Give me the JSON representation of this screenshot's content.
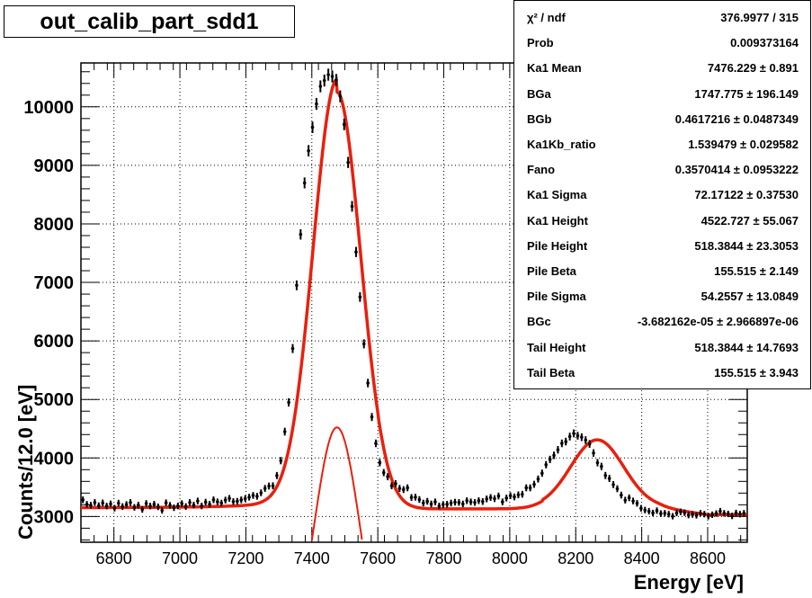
{
  "chart_data": {
    "type": "line",
    "title": "out_calib_part_sdd1",
    "xlabel": "Energy [eV]",
    "ylabel": "Counts/12.0 [eV]",
    "xlim": [
      6700,
      8720
    ],
    "ylim": [
      2560,
      10750
    ],
    "x_ticks": [
      6800,
      7000,
      7200,
      7400,
      7600,
      7800,
      8000,
      8200,
      8400,
      8600
    ],
    "y_ticks": [
      3000,
      4000,
      5000,
      6000,
      7000,
      8000,
      9000,
      10000
    ],
    "grid": true,
    "series": [
      {
        "type": "scatter_errorbars",
        "color": "#000000",
        "x": [
          6706,
          6718,
          6730,
          6742,
          6754,
          6766,
          6778,
          6790,
          6802,
          6814,
          6826,
          6838,
          6850,
          6862,
          6874,
          6886,
          6898,
          6910,
          6922,
          6934,
          6946,
          6958,
          6970,
          6982,
          6994,
          7006,
          7018,
          7030,
          7042,
          7054,
          7066,
          7078,
          7090,
          7102,
          7114,
          7126,
          7138,
          7150,
          7162,
          7174,
          7186,
          7198,
          7210,
          7222,
          7234,
          7246,
          7258,
          7270,
          7282,
          7294,
          7306,
          7318,
          7330,
          7342,
          7354,
          7366,
          7378,
          7390,
          7402,
          7414,
          7426,
          7438,
          7450,
          7462,
          7474,
          7486,
          7498,
          7510,
          7522,
          7534,
          7546,
          7558,
          7570,
          7582,
          7594,
          7606,
          7618,
          7630,
          7642,
          7654,
          7666,
          7678,
          7690,
          7702,
          7714,
          7726,
          7738,
          7750,
          7762,
          7774,
          7786,
          7798,
          7810,
          7822,
          7834,
          7846,
          7858,
          7870,
          7882,
          7894,
          7906,
          7918,
          7930,
          7942,
          7954,
          7966,
          7978,
          7990,
          8002,
          8014,
          8026,
          8038,
          8050,
          8062,
          8074,
          8086,
          8098,
          8110,
          8122,
          8134,
          8146,
          8158,
          8170,
          8182,
          8194,
          8206,
          8218,
          8230,
          8242,
          8254,
          8266,
          8278,
          8290,
          8302,
          8314,
          8326,
          8338,
          8350,
          8362,
          8374,
          8386,
          8398,
          8410,
          8422,
          8434,
          8446,
          8458,
          8470,
          8482,
          8494,
          8506,
          8518,
          8530,
          8542,
          8554,
          8566,
          8578,
          8590,
          8602,
          8614,
          8626,
          8638,
          8650,
          8662,
          8674,
          8686,
          8698,
          8710
        ],
        "y": [
          3285,
          3208,
          3192,
          3240,
          3185,
          3232,
          3178,
          3215,
          3142,
          3228,
          3170,
          3205,
          3240,
          3156,
          3195,
          3120,
          3222,
          3178,
          3210,
          3165,
          3105,
          3235,
          3190,
          3150,
          3180,
          3220,
          3170,
          3240,
          3195,
          3265,
          3180,
          3245,
          3210,
          3285,
          3250,
          3230,
          3280,
          3310,
          3255,
          3260,
          3285,
          3305,
          3330,
          3360,
          3345,
          3405,
          3480,
          3520,
          3525,
          3700,
          3955,
          4450,
          4950,
          5870,
          6950,
          7820,
          8700,
          9250,
          9650,
          10050,
          10350,
          10450,
          10550,
          10520,
          10460,
          10180,
          9700,
          9050,
          8300,
          7520,
          6750,
          5950,
          5280,
          4700,
          4250,
          3920,
          3750,
          3680,
          3525,
          3560,
          3480,
          3460,
          3490,
          3325,
          3330,
          3290,
          3230,
          3260,
          3215,
          3250,
          3180,
          3205,
          3210,
          3230,
          3245,
          3240,
          3215,
          3270,
          3250,
          3240,
          3270,
          3255,
          3300,
          3325,
          3305,
          3350,
          3250,
          3315,
          3355,
          3335,
          3370,
          3380,
          3490,
          3490,
          3550,
          3640,
          3740,
          3885,
          3975,
          4045,
          4140,
          4250,
          4280,
          4365,
          4420,
          4380,
          4355,
          4305,
          4240,
          4085,
          3920,
          3855,
          3700,
          3650,
          3545,
          3475,
          3365,
          3280,
          3320,
          3265,
          3225,
          3140,
          3110,
          3090,
          3060,
          3100,
          3050,
          3055,
          3040,
          3005,
          3060,
          3080,
          3065,
          3025,
          3035,
          3020,
          3055,
          3040,
          3005,
          3030,
          3050,
          3090,
          3055,
          3045,
          3010,
          3060,
          3040,
          3055
        ]
      },
      {
        "type": "line",
        "name": "total fit",
        "color": "#e8200e"
      },
      {
        "type": "line",
        "name": "Ka1 component",
        "color": "#e8200e"
      }
    ],
    "legend": "top-right",
    "stats": [
      {
        "name": "χ² / ndf",
        "value": "376.9977 / 315"
      },
      {
        "name": "Prob",
        "value": "0.009373164"
      },
      {
        "name": "Ka1 Mean",
        "value": "7476.229 ± 0.891"
      },
      {
        "name": "BGa",
        "value": "1747.775 ± 196.149"
      },
      {
        "name": "BGb",
        "value": "0.4617216 ± 0.0487349"
      },
      {
        "name": "Ka1Kb_ratio",
        "value": "1.539479 ± 0.029582"
      },
      {
        "name": "Fano",
        "value": "0.3570414 ± 0.0953222"
      },
      {
        "name": "Ka1 Sigma",
        "value": "72.17122 ± 0.37530"
      },
      {
        "name": "Ka1 Height",
        "value": "4522.727 ± 55.067"
      },
      {
        "name": "Pile Height",
        "value": "518.3844 ± 23.3053"
      },
      {
        "name": "Pile Beta",
        "value": "155.515 ± 2.149"
      },
      {
        "name": "Pile Sigma",
        "value": "54.2557 ± 13.0849"
      },
      {
        "name": "BGc",
        "value": "-3.682162e-05 ± 2.966897e-06"
      },
      {
        "name": "Tail Height",
        "value": "518.3844 ± 14.7693"
      },
      {
        "name": "Tail Beta",
        "value": "155.515 ± 3.943"
      }
    ]
  }
}
